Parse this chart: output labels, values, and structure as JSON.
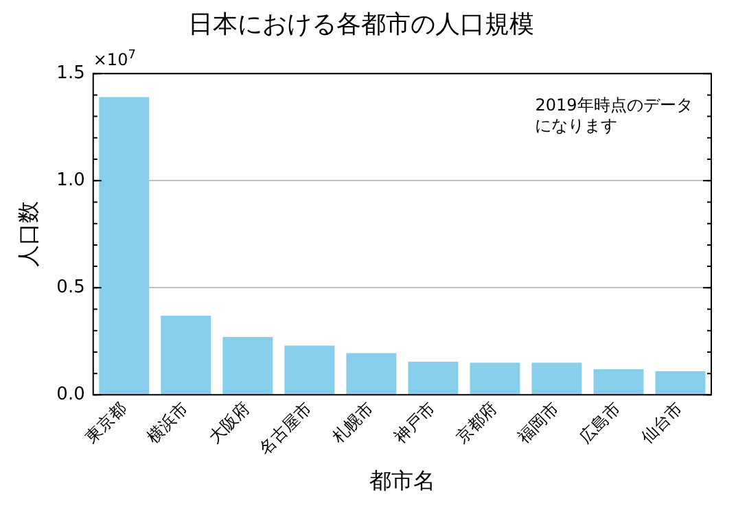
{
  "chart_data": {
    "type": "bar",
    "title": "日本における各都市の人口規模",
    "xlabel": "都市名",
    "ylabel": "人口数",
    "categories": [
      "東京都",
      "横浜市",
      "大阪府",
      "名古屋市",
      "札幌市",
      "神戸市",
      "京都府",
      "福岡市",
      "広島市",
      "仙台市"
    ],
    "values": [
      1.39,
      0.37,
      0.27,
      0.23,
      0.195,
      0.155,
      0.15,
      0.15,
      0.12,
      0.11
    ],
    "color": "#87ceeb",
    "ylim": [
      0,
      1.5
    ],
    "yticks": [
      {
        "value": 0,
        "label": "0.0"
      },
      {
        "value": 0.5,
        "label": "0.5"
      },
      {
        "value": 1,
        "label": "1.0"
      },
      {
        "value": 1.5,
        "label": "1.5"
      }
    ],
    "grid": "y",
    "annotations": [
      "×10$^{7}$",
      "2019年時点のデータになります"
    ]
  }
}
